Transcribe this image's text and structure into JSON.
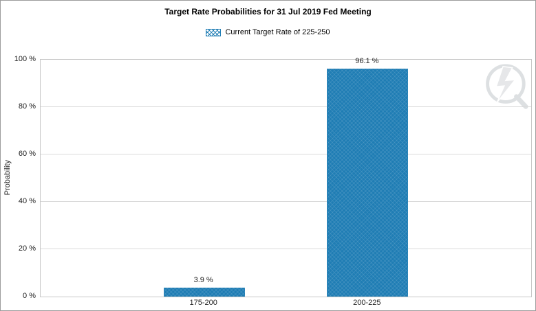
{
  "title": "Target Rate Probabilities for 31 Jul 2019 Fed Meeting",
  "legend": {
    "label": "Current Target Rate of 225-250"
  },
  "colors": {
    "bar": "#1f7db4",
    "grid": "#dadada",
    "text": "#222222",
    "watermark": "#b9bdc1"
  },
  "watermark_icon": "cme-group-logo",
  "chart_data": {
    "type": "bar",
    "title": "Target Rate Probabilities for 31 Jul 2019 Fed Meeting",
    "categories": [
      "175-200",
      "200-225"
    ],
    "values": [
      3.9,
      96.1
    ],
    "value_labels": [
      "3.9 %",
      "96.1 %"
    ],
    "xlabel": "",
    "ylabel": "Probability",
    "ylim": [
      0,
      100
    ],
    "yticks": [
      {
        "value": 0,
        "label": "0 %"
      },
      {
        "value": 20,
        "label": "20 %"
      },
      {
        "value": 40,
        "label": "40 %"
      },
      {
        "value": 60,
        "label": "60 %"
      },
      {
        "value": 80,
        "label": "80 %"
      },
      {
        "value": 100,
        "label": "100 %"
      }
    ],
    "grid": true,
    "legend_position": "top",
    "legend_entries": [
      "Current Target Rate of 225-250"
    ]
  }
}
